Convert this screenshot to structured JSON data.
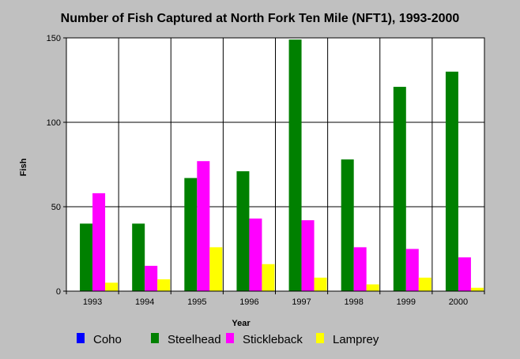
{
  "chart_data": {
    "type": "bar",
    "title": "Number of Fish Captured at North Fork Ten Mile (NFT1), 1993-2000",
    "xlabel": "Year",
    "ylabel": "Fish",
    "categories": [
      "1993",
      "1994",
      "1995",
      "1996",
      "1997",
      "1998",
      "1999",
      "2000"
    ],
    "ylim": [
      0,
      150
    ],
    "yticks": [
      0,
      50,
      100,
      150
    ],
    "grid": true,
    "legend_position": "bottom",
    "series": [
      {
        "name": "Coho",
        "color": "#0000ff",
        "values": [
          0,
          0,
          0,
          0,
          0,
          0,
          0,
          0
        ]
      },
      {
        "name": "Steelhead",
        "color": "#008000",
        "values": [
          40,
          40,
          67,
          71,
          149,
          78,
          121,
          130
        ]
      },
      {
        "name": "Stickleback",
        "color": "#ff00ff",
        "values": [
          58,
          15,
          77,
          43,
          42,
          26,
          25,
          20
        ]
      },
      {
        "name": "Lamprey",
        "color": "#ffff00",
        "values": [
          5,
          7,
          26,
          16,
          8,
          4,
          8,
          2
        ]
      }
    ]
  }
}
